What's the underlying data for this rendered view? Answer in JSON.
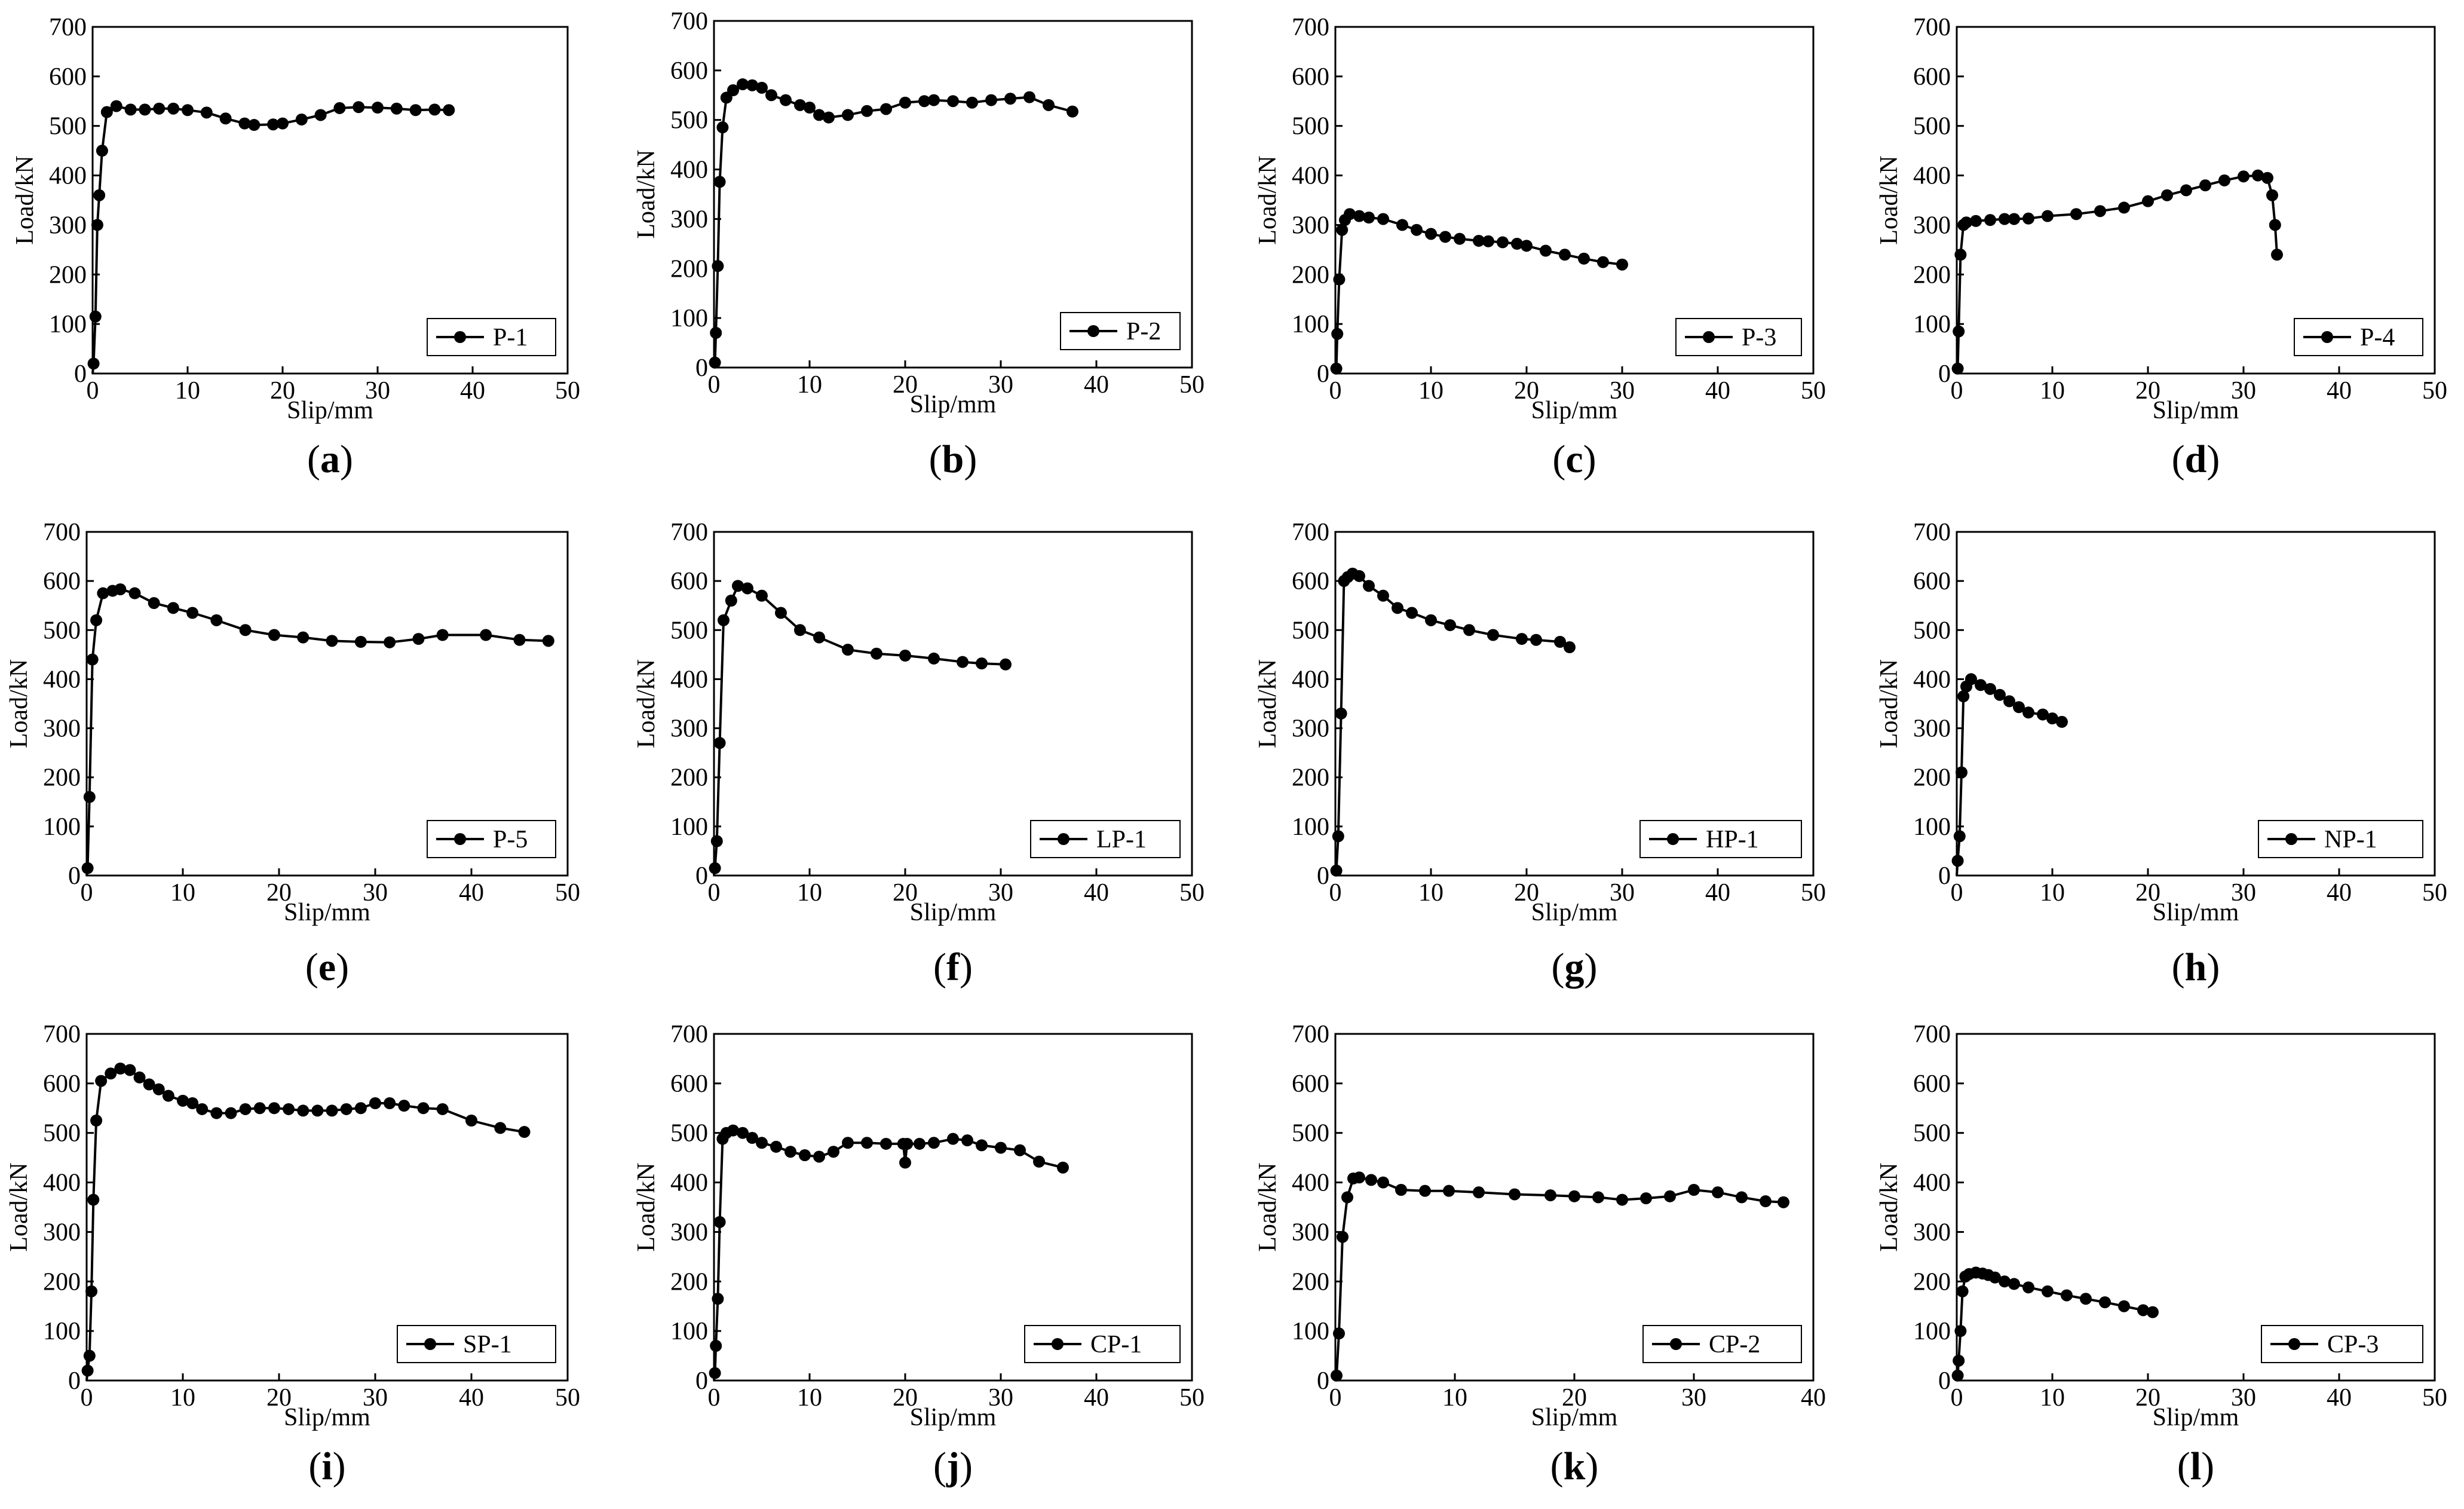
{
  "figure": {
    "background": "#ffffff",
    "line_color": "#000000"
  },
  "chart_data": [
    {
      "type": "line",
      "panel": "(a)",
      "panel_letter": "a",
      "series": [
        {
          "name": "P-1",
          "x": [
            0,
            0.1,
            0.3,
            0.5,
            0.7,
            1,
            1.5,
            2.5,
            4,
            5.5,
            7,
            8.5,
            10,
            12,
            14,
            16,
            17,
            19,
            20,
            22,
            24,
            26,
            28,
            30,
            32,
            34,
            36,
            37.5
          ],
          "y": [
            0,
            20,
            115,
            300,
            360,
            450,
            528,
            540,
            533,
            533,
            535,
            535,
            532,
            527,
            515,
            505,
            502,
            503,
            505,
            513,
            522,
            536,
            538,
            537,
            535,
            532,
            533,
            532
          ]
        }
      ],
      "xlabel": "Slip/mm",
      "ylabel": "Load/kN",
      "xlim": [
        0,
        50
      ],
      "ylim": [
        0,
        700
      ],
      "xticks": [
        0,
        10,
        20,
        30,
        40,
        50
      ],
      "yticks": [
        0,
        100,
        200,
        300,
        400,
        500,
        600,
        700
      ],
      "legend": "bottom-right"
    },
    {
      "type": "line",
      "panel": "(b)",
      "panel_letter": "b",
      "series": [
        {
          "name": "P-2",
          "x": [
            0,
            0.1,
            0.2,
            0.4,
            0.6,
            0.9,
            1.3,
            2,
            3,
            4,
            5,
            6,
            7.5,
            9,
            10,
            11,
            12,
            14,
            16,
            18,
            20,
            22,
            23,
            25,
            27,
            29,
            31,
            33,
            35,
            37.5
          ],
          "y": [
            0,
            10,
            70,
            205,
            375,
            485,
            545,
            560,
            572,
            570,
            565,
            550,
            540,
            530,
            525,
            510,
            505,
            510,
            518,
            522,
            535,
            538,
            540,
            538,
            535,
            540,
            543,
            546,
            530,
            517
          ]
        }
      ],
      "xlabel": "Slip/mm",
      "ylabel": "Load/kN",
      "xlim": [
        0,
        50
      ],
      "ylim": [
        0,
        700
      ],
      "xticks": [
        0,
        10,
        20,
        30,
        40,
        50
      ],
      "yticks": [
        0,
        100,
        200,
        300,
        400,
        500,
        600,
        700
      ],
      "legend": "bottom-right"
    },
    {
      "type": "line",
      "panel": "(c)",
      "panel_letter": "c",
      "series": [
        {
          "name": "P-3",
          "x": [
            0,
            0.1,
            0.2,
            0.4,
            0.7,
            1,
            1.5,
            2.5,
            3.5,
            5,
            7,
            8.5,
            10,
            11.5,
            13,
            15,
            16,
            17.5,
            19,
            20,
            22,
            24,
            26,
            28,
            30
          ],
          "y": [
            0,
            10,
            80,
            190,
            290,
            310,
            322,
            318,
            315,
            312,
            300,
            290,
            282,
            276,
            272,
            268,
            267,
            265,
            262,
            258,
            248,
            240,
            232,
            225,
            220
          ]
        }
      ],
      "xlabel": "Slip/mm",
      "ylabel": "Load/kN",
      "xlim": [
        0,
        50
      ],
      "ylim": [
        0,
        700
      ],
      "xticks": [
        0,
        10,
        20,
        30,
        40,
        50
      ],
      "yticks": [
        0,
        100,
        200,
        300,
        400,
        500,
        600,
        700
      ],
      "legend": "bottom-right"
    },
    {
      "type": "line",
      "panel": "(d)",
      "panel_letter": "d",
      "series": [
        {
          "name": "P-4",
          "x": [
            0,
            0.1,
            0.2,
            0.4,
            0.7,
            1,
            2,
            3.5,
            5,
            6,
            7.5,
            9.5,
            12.5,
            15,
            17.5,
            20,
            22,
            24,
            26,
            28,
            30,
            31.5,
            32.5,
            33,
            33.3,
            33.5
          ],
          "y": [
            0,
            10,
            85,
            240,
            300,
            305,
            308,
            310,
            312,
            312,
            313,
            318,
            322,
            328,
            335,
            348,
            360,
            370,
            380,
            390,
            398,
            400,
            395,
            360,
            300,
            240
          ]
        }
      ],
      "xlabel": "Slip/mm",
      "ylabel": "Load/kN",
      "xlim": [
        0,
        50
      ],
      "ylim": [
        0,
        700
      ],
      "xticks": [
        0,
        10,
        20,
        30,
        40,
        50
      ],
      "yticks": [
        0,
        100,
        200,
        300,
        400,
        500,
        600,
        700
      ],
      "legend": "bottom-right"
    },
    {
      "type": "line",
      "panel": "(e)",
      "panel_letter": "e",
      "series": [
        {
          "name": "P-5",
          "x": [
            0,
            0.1,
            0.3,
            0.6,
            1,
            1.7,
            2.7,
            3.5,
            5,
            7,
            9,
            11,
            13.5,
            16.5,
            19.5,
            22.5,
            25.5,
            28.5,
            31.5,
            34.5,
            37,
            41.5,
            45,
            48
          ],
          "y": [
            0,
            15,
            160,
            440,
            520,
            575,
            580,
            583,
            575,
            555,
            545,
            535,
            520,
            500,
            490,
            485,
            478,
            476,
            475,
            482,
            490,
            490,
            480,
            478
          ]
        }
      ],
      "xlabel": "Slip/mm",
      "ylabel": "Load/kN",
      "xlim": [
        0,
        50
      ],
      "ylim": [
        0,
        700
      ],
      "xticks": [
        0,
        10,
        20,
        30,
        40,
        50
      ],
      "yticks": [
        0,
        100,
        200,
        300,
        400,
        500,
        600,
        700
      ],
      "legend": "bottom-right"
    },
    {
      "type": "line",
      "panel": "(f)",
      "panel_letter": "f",
      "series": [
        {
          "name": "LP-1",
          "x": [
            0,
            0.1,
            0.3,
            0.6,
            1,
            1.8,
            2.5,
            3.5,
            5,
            7,
            9,
            11,
            14,
            17,
            20,
            23,
            26,
            28,
            30.5
          ],
          "y": [
            0,
            15,
            70,
            270,
            520,
            560,
            590,
            585,
            570,
            535,
            500,
            485,
            460,
            452,
            448,
            442,
            435,
            432,
            430
          ]
        }
      ],
      "xlabel": "Slip/mm",
      "ylabel": "Load/kN",
      "xlim": [
        0,
        50
      ],
      "ylim": [
        0,
        700
      ],
      "xticks": [
        0,
        10,
        20,
        30,
        40,
        50
      ],
      "yticks": [
        0,
        100,
        200,
        300,
        400,
        500,
        600,
        700
      ],
      "legend": "bottom-right"
    },
    {
      "type": "line",
      "panel": "(g)",
      "panel_letter": "g",
      "series": [
        {
          "name": "HP-1",
          "x": [
            0,
            0.1,
            0.3,
            0.6,
            0.9,
            1.3,
            1.8,
            2.5,
            3.5,
            5,
            6.5,
            8,
            10,
            12,
            14,
            16.5,
            19.5,
            21,
            23.5,
            24.5
          ],
          "y": [
            0,
            10,
            80,
            330,
            600,
            608,
            615,
            610,
            590,
            570,
            545,
            535,
            520,
            510,
            500,
            490,
            482,
            480,
            476,
            465
          ]
        }
      ],
      "xlabel": "Slip/mm",
      "ylabel": "Load/kN",
      "xlim": [
        0,
        50
      ],
      "ylim": [
        0,
        700
      ],
      "xticks": [
        0,
        10,
        20,
        30,
        40,
        50
      ],
      "yticks": [
        0,
        100,
        200,
        300,
        400,
        500,
        600,
        700
      ],
      "legend": "bottom-right"
    },
    {
      "type": "line",
      "panel": "(h)",
      "panel_letter": "h",
      "series": [
        {
          "name": "NP-1",
          "x": [
            0,
            0.1,
            0.3,
            0.5,
            0.7,
            1,
            1.5,
            2.5,
            3.5,
            4.5,
            5.5,
            6.5,
            7.5,
            9,
            10,
            11
          ],
          "y": [
            0,
            30,
            80,
            210,
            365,
            385,
            400,
            388,
            380,
            368,
            355,
            343,
            332,
            328,
            320,
            313
          ]
        }
      ],
      "xlabel": "Slip/mm",
      "ylabel": "Load/kN",
      "xlim": [
        0,
        50
      ],
      "ylim": [
        0,
        700
      ],
      "xticks": [
        0,
        10,
        20,
        30,
        40,
        50
      ],
      "yticks": [
        0,
        100,
        200,
        300,
        400,
        500,
        600,
        700
      ],
      "legend": "bottom-right"
    },
    {
      "type": "line",
      "panel": "(i)",
      "panel_letter": "i",
      "series": [
        {
          "name": "SP-1",
          "x": [
            0,
            0.1,
            0.3,
            0.5,
            0.7,
            1,
            1.5,
            2.5,
            3.5,
            4.5,
            5.5,
            6.5,
            7.5,
            8.5,
            10,
            11,
            12,
            13.5,
            15,
            16.5,
            18,
            19.5,
            21,
            22.5,
            24,
            25.5,
            27,
            28.5,
            30,
            31.5,
            33,
            35,
            37,
            40,
            43,
            45.5
          ],
          "y": [
            0,
            20,
            50,
            180,
            365,
            525,
            605,
            620,
            630,
            627,
            612,
            598,
            588,
            575,
            565,
            560,
            548,
            540,
            540,
            548,
            550,
            550,
            548,
            545,
            545,
            545,
            548,
            550,
            560,
            560,
            555,
            550,
            548,
            525,
            510,
            502
          ]
        }
      ],
      "xlabel": "Slip/mm",
      "ylabel": "Load/kN",
      "xlim": [
        0,
        50
      ],
      "ylim": [
        0,
        700
      ],
      "xticks": [
        0,
        10,
        20,
        30,
        40,
        50
      ],
      "yticks": [
        0,
        100,
        200,
        300,
        400,
        500,
        600,
        700
      ],
      "legend": "bottom-right"
    },
    {
      "type": "line",
      "panel": "(j)",
      "panel_letter": "j",
      "series": [
        {
          "name": "CP-1",
          "x": [
            0,
            0.1,
            0.2,
            0.4,
            0.6,
            0.9,
            1.3,
            2,
            3,
            4,
            5,
            6.5,
            8,
            9.5,
            11,
            12.5,
            14,
            16,
            18,
            19.8,
            20,
            20.2,
            21.5,
            23,
            25,
            26.5,
            28,
            30,
            32,
            34,
            36.5
          ],
          "y": [
            0,
            15,
            70,
            165,
            320,
            488,
            500,
            505,
            500,
            490,
            480,
            472,
            462,
            455,
            452,
            462,
            480,
            480,
            478,
            478,
            440,
            478,
            478,
            480,
            488,
            485,
            475,
            470,
            465,
            442,
            430
          ]
        }
      ],
      "xlabel": "Slip/mm",
      "ylabel": "Load/kN",
      "xlim": [
        0,
        50
      ],
      "ylim": [
        0,
        700
      ],
      "xticks": [
        0,
        10,
        20,
        30,
        40,
        50
      ],
      "yticks": [
        0,
        100,
        200,
        300,
        400,
        500,
        600,
        700
      ],
      "legend": "bottom-right"
    },
    {
      "type": "line",
      "panel": "(k)",
      "panel_letter": "k",
      "series": [
        {
          "name": "CP-2",
          "x": [
            0,
            0.1,
            0.3,
            0.6,
            1,
            1.5,
            2,
            3,
            4,
            5.5,
            7.5,
            9.5,
            12,
            15,
            18,
            20,
            22,
            24,
            26,
            28,
            30,
            32,
            34,
            36,
            37.5
          ],
          "y": [
            0,
            10,
            95,
            290,
            370,
            408,
            410,
            405,
            400,
            385,
            383,
            383,
            380,
            376,
            374,
            372,
            370,
            365,
            368,
            372,
            385,
            380,
            370,
            362,
            360
          ]
        }
      ],
      "xlabel": "Slip/mm",
      "ylabel": "Load/kN",
      "xlim": [
        0,
        40
      ],
      "ylim": [
        0,
        700
      ],
      "xticks": [
        0,
        10,
        20,
        30,
        40
      ],
      "yticks": [
        0,
        100,
        200,
        300,
        400,
        500,
        600,
        700
      ],
      "legend": "bottom-right"
    },
    {
      "type": "line",
      "panel": "(l)",
      "panel_letter": "l",
      "series": [
        {
          "name": "CP-3",
          "x": [
            0,
            0.1,
            0.2,
            0.4,
            0.6,
            0.9,
            1.3,
            2,
            2.7,
            3.3,
            4,
            5,
            6,
            7.5,
            9.5,
            11.5,
            13.5,
            15.5,
            17.5,
            19.5,
            20.5
          ],
          "y": [
            0,
            10,
            40,
            100,
            180,
            210,
            215,
            218,
            216,
            213,
            208,
            200,
            195,
            188,
            180,
            172,
            165,
            158,
            150,
            142,
            138
          ]
        }
      ],
      "xlabel": "Slip/mm",
      "ylabel": "Load/kN",
      "xlim": [
        0,
        50
      ],
      "ylim": [
        0,
        700
      ],
      "xticks": [
        0,
        10,
        20,
        30,
        40,
        50
      ],
      "yticks": [
        0,
        100,
        200,
        300,
        400,
        500,
        600,
        700
      ],
      "legend": "bottom-right"
    }
  ]
}
